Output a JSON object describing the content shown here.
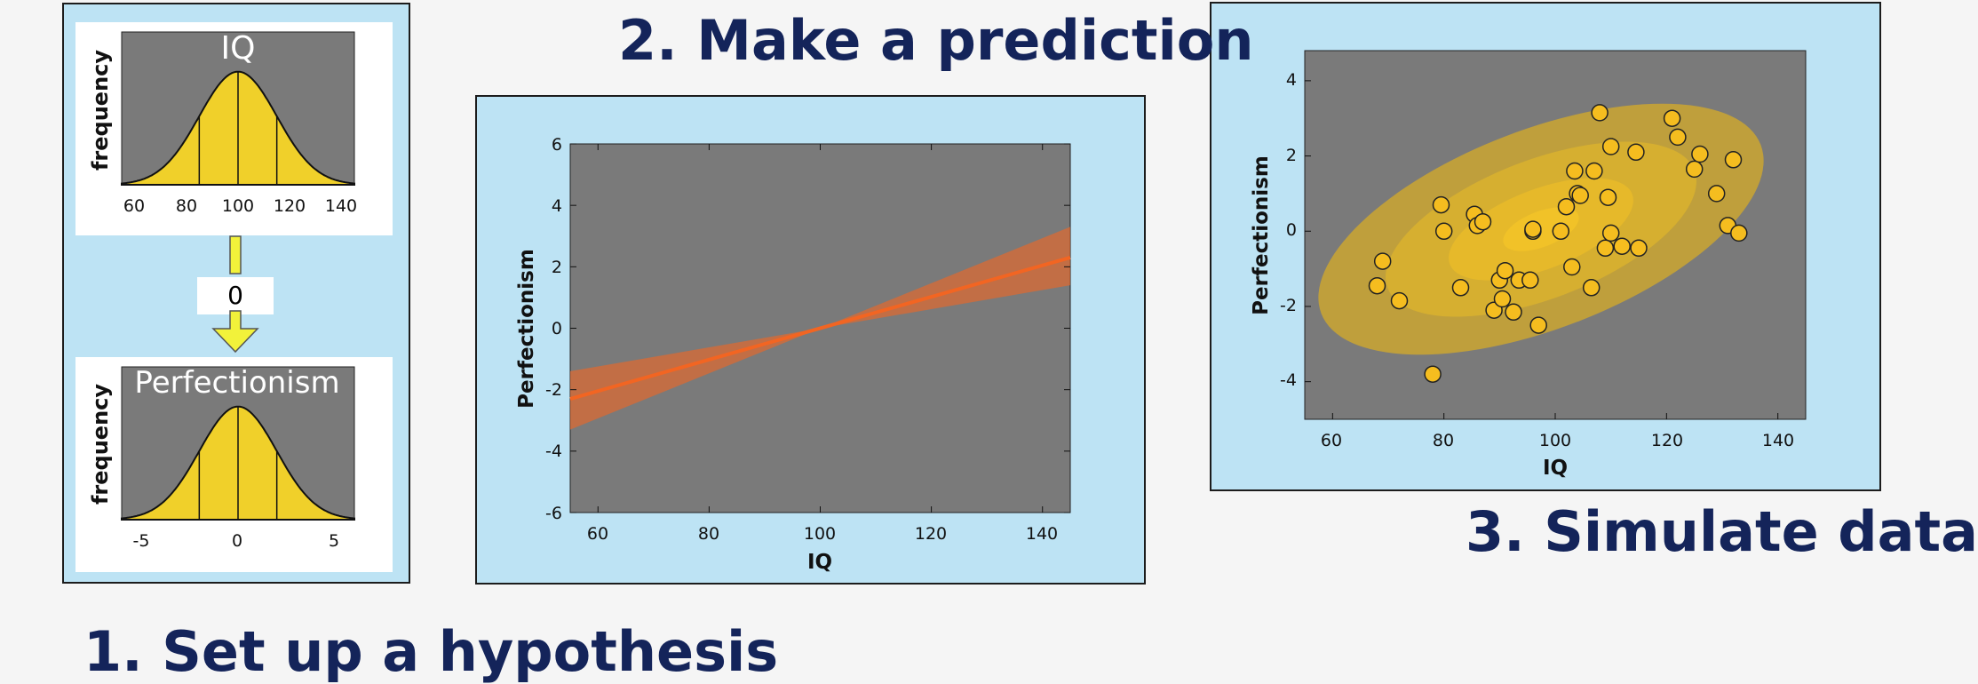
{
  "headings": {
    "step1": "1. Set up a hypothesis",
    "step2": "2. Make a prediction",
    "step3": "3. Simulate data"
  },
  "hypothesis": {
    "top_hist": {
      "title": "IQ",
      "ylabel": "frequency",
      "ticks": [
        "60",
        "80",
        "100",
        "120",
        "140"
      ]
    },
    "arrow_label": "0",
    "bottom_hist": {
      "title": "Perfectionism",
      "ylabel": "frequency",
      "ticks": [
        "-5",
        "0",
        "5"
      ]
    }
  },
  "prediction": {
    "xlabel": "IQ",
    "ylabel": "Perfectionism",
    "xticks": [
      "60",
      "80",
      "100",
      "120",
      "140"
    ],
    "yticks": [
      "6",
      "4",
      "2",
      "0",
      "-2",
      "-4",
      "-6"
    ]
  },
  "simulation": {
    "xlabel": "IQ",
    "ylabel": "Perfectionism",
    "xticks": [
      "60",
      "80",
      "100",
      "120",
      "140"
    ],
    "yticks": [
      "4",
      "2",
      "0",
      "-2",
      "-4"
    ]
  },
  "colors": {
    "heading": "#14245a",
    "panel": "#bde3f4",
    "plot_bg": "#7a7a7a",
    "hist_fill": "#f0d02a",
    "line": "#f26522",
    "marker": "#f5bd1f"
  },
  "chart_data": [
    {
      "type": "area",
      "title": "IQ",
      "ylabel": "frequency",
      "xlim": [
        55,
        145
      ],
      "distribution": {
        "mean": 100,
        "sd": 15
      }
    },
    {
      "type": "area",
      "title": "Perfectionism",
      "ylabel": "frequency",
      "xlim": [
        -6,
        6
      ],
      "distribution": {
        "mean": 0,
        "sd": 2
      }
    },
    {
      "type": "line",
      "xlabel": "IQ",
      "ylabel": "Perfectionism",
      "xlim": [
        55,
        145
      ],
      "ylim": [
        -6,
        6
      ],
      "line": {
        "x": [
          55,
          145
        ],
        "y": [
          -2.3,
          2.3
        ]
      },
      "band_lower": {
        "x": [
          55,
          100,
          145
        ],
        "y": [
          -3.3,
          0,
          1.4
        ]
      },
      "band_upper": {
        "x": [
          55,
          100,
          145
        ],
        "y": [
          -1.4,
          0,
          3.3
        ]
      }
    },
    {
      "type": "scatter",
      "xlabel": "IQ",
      "ylabel": "Perfectionism",
      "xlim": [
        55,
        145
      ],
      "ylim": [
        -5,
        4.8
      ],
      "x": [
        68,
        69,
        72,
        78,
        79.5,
        80,
        83,
        85.5,
        86,
        87,
        89,
        90,
        90.5,
        91,
        92.5,
        93.5,
        95.5,
        96,
        96,
        97,
        101,
        102,
        103,
        103.5,
        104,
        104.5,
        106.5,
        107,
        108,
        109,
        109.5,
        110,
        110,
        112,
        114.5,
        115,
        121,
        122,
        125,
        126,
        129,
        131,
        132,
        133
      ],
      "y": [
        -1.45,
        -0.8,
        -1.85,
        -3.8,
        0.7,
        0.0,
        -1.5,
        0.45,
        0.15,
        0.25,
        -2.1,
        -1.3,
        -1.8,
        -1.05,
        -2.15,
        -1.3,
        -1.3,
        0.0,
        0.05,
        -2.5,
        0.0,
        0.65,
        -0.95,
        1.6,
        1.0,
        0.95,
        -1.5,
        1.6,
        3.15,
        -0.45,
        0.9,
        2.25,
        -0.05,
        -0.4,
        2.1,
        -0.45,
        3.0,
        2.5,
        1.65,
        2.05,
        1.0,
        0.15,
        1.9,
        -0.05
      ]
    }
  ]
}
